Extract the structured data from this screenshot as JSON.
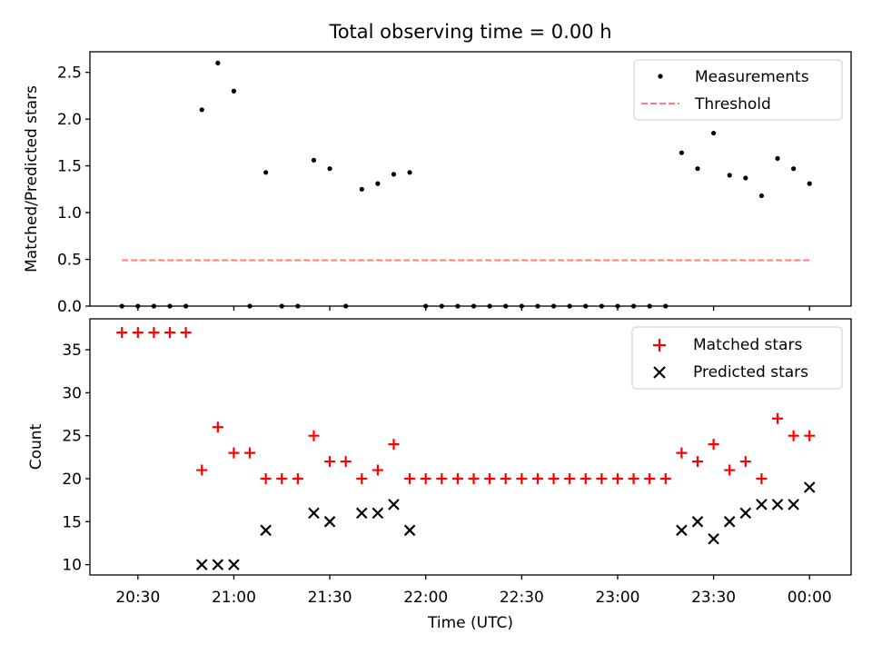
{
  "figure_title": "Total observing time = 0.00 h",
  "colors": {
    "measurement": "#000000",
    "threshold": "#ff7f7f",
    "matched": "#ff0000",
    "predicted": "#000000",
    "axis": "#000000"
  },
  "chart_data": [
    {
      "type": "scatter",
      "ylabel": "Matched/Predicted stars",
      "xlabel": "",
      "ylim": [
        0,
        2.72
      ],
      "xlim": [
        "20:15",
        "00:13"
      ],
      "yticks": [
        0.0,
        0.5,
        1.0,
        1.5,
        2.0,
        2.5
      ],
      "ytick_labels": [
        "0.0",
        "0.5",
        "1.0",
        "1.5",
        "2.0",
        "2.5"
      ],
      "grid": false,
      "legend_location": "upper right",
      "legend": [
        "Measurements",
        "Threshold"
      ],
      "series": [
        {
          "name": "Measurements",
          "marker": "dot",
          "x": [
            "20:25",
            "20:30",
            "20:35",
            "20:40",
            "20:45",
            "20:50",
            "20:55",
            "21:00",
            "21:05",
            "21:10",
            "21:15",
            "21:20",
            "21:25",
            "21:30",
            "21:35",
            "21:40",
            "21:45",
            "21:50",
            "21:55",
            "22:00",
            "22:05",
            "22:10",
            "22:15",
            "22:20",
            "22:25",
            "22:30",
            "22:35",
            "22:40",
            "22:45",
            "22:50",
            "22:55",
            "23:00",
            "23:05",
            "23:10",
            "23:15",
            "23:20",
            "23:25",
            "23:30",
            "23:35",
            "23:40",
            "23:45",
            "23:50",
            "23:55",
            "00:00"
          ],
          "y": [
            0,
            0,
            0,
            0,
            0,
            2.1,
            2.6,
            2.3,
            0,
            1.43,
            0,
            0,
            1.56,
            1.47,
            0,
            1.25,
            1.31,
            1.41,
            1.43,
            0,
            0,
            0,
            0,
            0,
            0,
            0,
            0,
            0,
            0,
            0,
            0,
            0,
            0,
            0,
            0,
            1.64,
            1.47,
            1.85,
            1.4,
            1.37,
            1.18,
            1.58,
            1.47,
            1.31
          ]
        },
        {
          "name": "Threshold",
          "line_style": "dashed",
          "x": [
            "20:25",
            "00:00"
          ],
          "y": [
            0.49,
            0.49
          ]
        }
      ]
    },
    {
      "type": "scatter",
      "ylabel": "Count",
      "xlabel": "Time (UTC)",
      "ylim": [
        8.8,
        38.6
      ],
      "xlim": [
        "20:15",
        "00:13"
      ],
      "yticks": [
        10,
        15,
        20,
        25,
        30,
        35
      ],
      "ytick_labels": [
        "10",
        "15",
        "20",
        "25",
        "30",
        "35"
      ],
      "xticks": [
        "20:30",
        "21:00",
        "21:30",
        "22:00",
        "22:30",
        "23:00",
        "23:30",
        "00:00"
      ],
      "xtick_labels": [
        "20:30",
        "21:00",
        "21:30",
        "22:00",
        "22:30",
        "23:00",
        "23:30",
        "00:00"
      ],
      "grid": false,
      "legend_location": "upper right",
      "legend": [
        "Matched stars",
        "Predicted stars"
      ],
      "series": [
        {
          "name": "Matched stars",
          "marker": "plus",
          "x": [
            "20:25",
            "20:30",
            "20:35",
            "20:40",
            "20:45",
            "20:50",
            "20:55",
            "21:00",
            "21:05",
            "21:10",
            "21:15",
            "21:20",
            "21:25",
            "21:30",
            "21:35",
            "21:40",
            "21:45",
            "21:50",
            "21:55",
            "22:00",
            "22:05",
            "22:10",
            "22:15",
            "22:20",
            "22:25",
            "22:30",
            "22:35",
            "22:40",
            "22:45",
            "22:50",
            "22:55",
            "23:00",
            "23:05",
            "23:10",
            "23:15",
            "23:20",
            "23:25",
            "23:30",
            "23:35",
            "23:40",
            "23:45",
            "23:50",
            "23:55",
            "00:00"
          ],
          "y": [
            37,
            37,
            37,
            37,
            37,
            21,
            26,
            23,
            23,
            20,
            20,
            20,
            25,
            22,
            22,
            20,
            21,
            24,
            20,
            20,
            20,
            20,
            20,
            20,
            20,
            20,
            20,
            20,
            20,
            20,
            20,
            20,
            20,
            20,
            20,
            23,
            22,
            24,
            21,
            22,
            20,
            27,
            25,
            25
          ]
        },
        {
          "name": "Predicted stars",
          "marker": "x",
          "x": [
            "20:50",
            "20:55",
            "21:00",
            "21:10",
            "21:25",
            "21:30",
            "21:40",
            "21:45",
            "21:50",
            "21:55",
            "23:20",
            "23:25",
            "23:30",
            "23:35",
            "23:40",
            "23:45",
            "23:50",
            "23:55",
            "00:00"
          ],
          "y": [
            10,
            10,
            10,
            14,
            16,
            15,
            16,
            16,
            17,
            14,
            14,
            15,
            13,
            15,
            16,
            17,
            17,
            17,
            19
          ]
        }
      ]
    }
  ]
}
